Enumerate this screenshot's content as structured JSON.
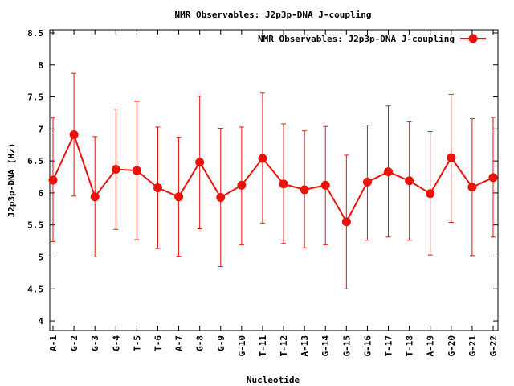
{
  "chart_data": {
    "type": "line",
    "title": "NMR Observables: J2p3p-DNA J-coupling",
    "xlabel": "Nucleotide",
    "ylabel": "J2p3p-DNA (Hz)",
    "ylim": [
      3.85,
      8.55
    ],
    "yticks": [
      4,
      4.5,
      5,
      5.5,
      6,
      6.5,
      7,
      7.5,
      8,
      8.5
    ],
    "ytick_labels": [
      "4",
      "4.5",
      "5",
      "5.5",
      "6",
      "6.5",
      "7",
      "7.5",
      "8",
      "8.5"
    ],
    "grid": false,
    "legend_position": "top-right",
    "categories": [
      "A-1",
      "G-2",
      "G-3",
      "G-4",
      "T-5",
      "T-6",
      "A-7",
      "G-8",
      "G-9",
      "G-10",
      "T-11",
      "T-12",
      "A-13",
      "G-14",
      "G-15",
      "G-16",
      "T-17",
      "T-18",
      "A-19",
      "G-20",
      "G-21",
      "G-22"
    ],
    "series": [
      {
        "name": "NMR Observables: J2p3p-DNA J-coupling",
        "color": "#e8140c",
        "values": [
          6.2,
          6.91,
          5.94,
          6.37,
          6.35,
          6.08,
          5.94,
          6.48,
          5.93,
          6.12,
          6.54,
          6.14,
          6.05,
          6.12,
          5.55,
          6.17,
          6.33,
          6.19,
          5.99,
          6.55,
          6.09,
          6.24
        ],
        "err_low": [
          5.24,
          5.95,
          5.0,
          5.43,
          5.27,
          5.13,
          5.01,
          5.44,
          4.85,
          5.19,
          5.53,
          5.21,
          5.14,
          5.19,
          4.5,
          5.26,
          5.31,
          5.26,
          5.03,
          5.54,
          5.02,
          5.31
        ],
        "err_high": [
          7.17,
          7.87,
          6.88,
          7.31,
          7.43,
          7.03,
          6.87,
          7.51,
          7.01,
          7.03,
          7.56,
          7.08,
          6.97,
          7.04,
          6.59,
          7.06,
          7.36,
          7.11,
          6.96,
          7.54,
          7.16,
          7.18
        ]
      }
    ]
  }
}
